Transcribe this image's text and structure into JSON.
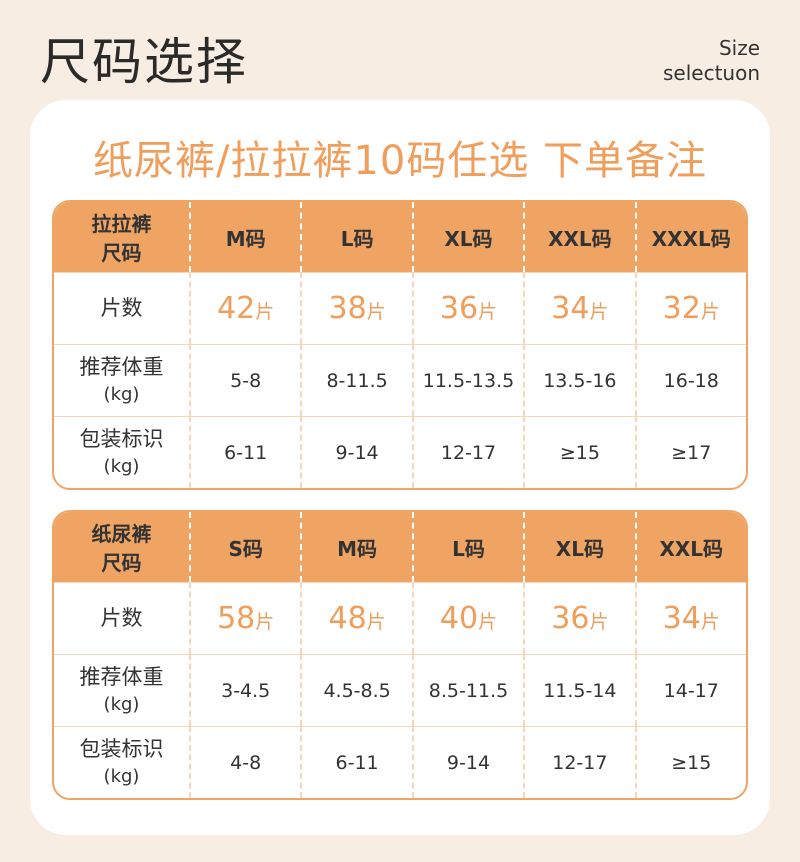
{
  "header": {
    "title": "尺码选择",
    "subtitle_en": [
      "Size",
      "selectuon"
    ]
  },
  "banner": "纸尿裤/拉拉裤10码任选 下单备注",
  "tables": [
    {
      "corner": [
        "拉拉裤",
        "尺码"
      ],
      "sizes": [
        "M码",
        "L码",
        "XL码",
        "XXL码",
        "XXXL码"
      ],
      "rows": [
        {
          "label": [
            "片数"
          ],
          "cells": [
            {
              "number": "42",
              "unit": "片"
            },
            {
              "number": "38",
              "unit": "片"
            },
            {
              "number": "36",
              "unit": "片"
            },
            {
              "number": "34",
              "unit": "片"
            },
            {
              "number": "32",
              "unit": "片"
            }
          ]
        },
        {
          "label": [
            "推荐体重",
            "(kg)"
          ],
          "cells": [
            "5-8",
            "8-11.5",
            "11.5-13.5",
            "13.5-16",
            "16-18"
          ]
        },
        {
          "label": [
            "包装标识",
            "(kg)"
          ],
          "cells": [
            "6-11",
            "9-14",
            "12-17",
            "≥15",
            "≥17"
          ]
        }
      ]
    },
    {
      "corner": [
        "纸尿裤",
        "尺码"
      ],
      "sizes": [
        "S码",
        "M码",
        "L码",
        "XL码",
        "XXL码"
      ],
      "rows": [
        {
          "label": [
            "片数"
          ],
          "cells": [
            {
              "number": "58",
              "unit": "片"
            },
            {
              "number": "48",
              "unit": "片"
            },
            {
              "number": "40",
              "unit": "片"
            },
            {
              "number": "36",
              "unit": "片"
            },
            {
              "number": "34",
              "unit": "片"
            }
          ]
        },
        {
          "label": [
            "推荐体重",
            "(kg)"
          ],
          "cells": [
            "3-4.5",
            "4.5-8.5",
            "8.5-11.5",
            "11.5-14",
            "14-17"
          ]
        },
        {
          "label": [
            "包装标识",
            "(kg)"
          ],
          "cells": [
            "4-8",
            "6-11",
            "9-14",
            "12-17",
            "≥15"
          ]
        }
      ]
    }
  ]
}
